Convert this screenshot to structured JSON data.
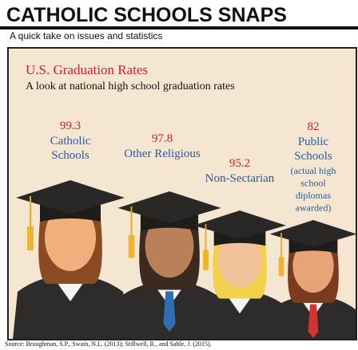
{
  "header": {
    "title": "CATHOLIC SCHOOLS SNAPS",
    "subtitle": "A quick take on issues and statistics"
  },
  "panel": {
    "title": "U.S. Graduation Rates",
    "subtitle": "A look at national high school graduation rates",
    "groups": [
      {
        "value": 99.3,
        "label": [
          "Catholic",
          "Schools"
        ]
      },
      {
        "value": 97.8,
        "label": [
          "Other Religious"
        ]
      },
      {
        "value": 95.2,
        "label": [
          "Non-Sectarian"
        ]
      },
      {
        "value": 82,
        "label": [
          "Public",
          "Schools",
          "(actual high",
          "school",
          "diplomas",
          "awarded)"
        ]
      }
    ]
  },
  "source": "Source: Broughman, S.P., Swain, N.L. (2013); Stillwell, R., and Sable, J. (2015)."
}
